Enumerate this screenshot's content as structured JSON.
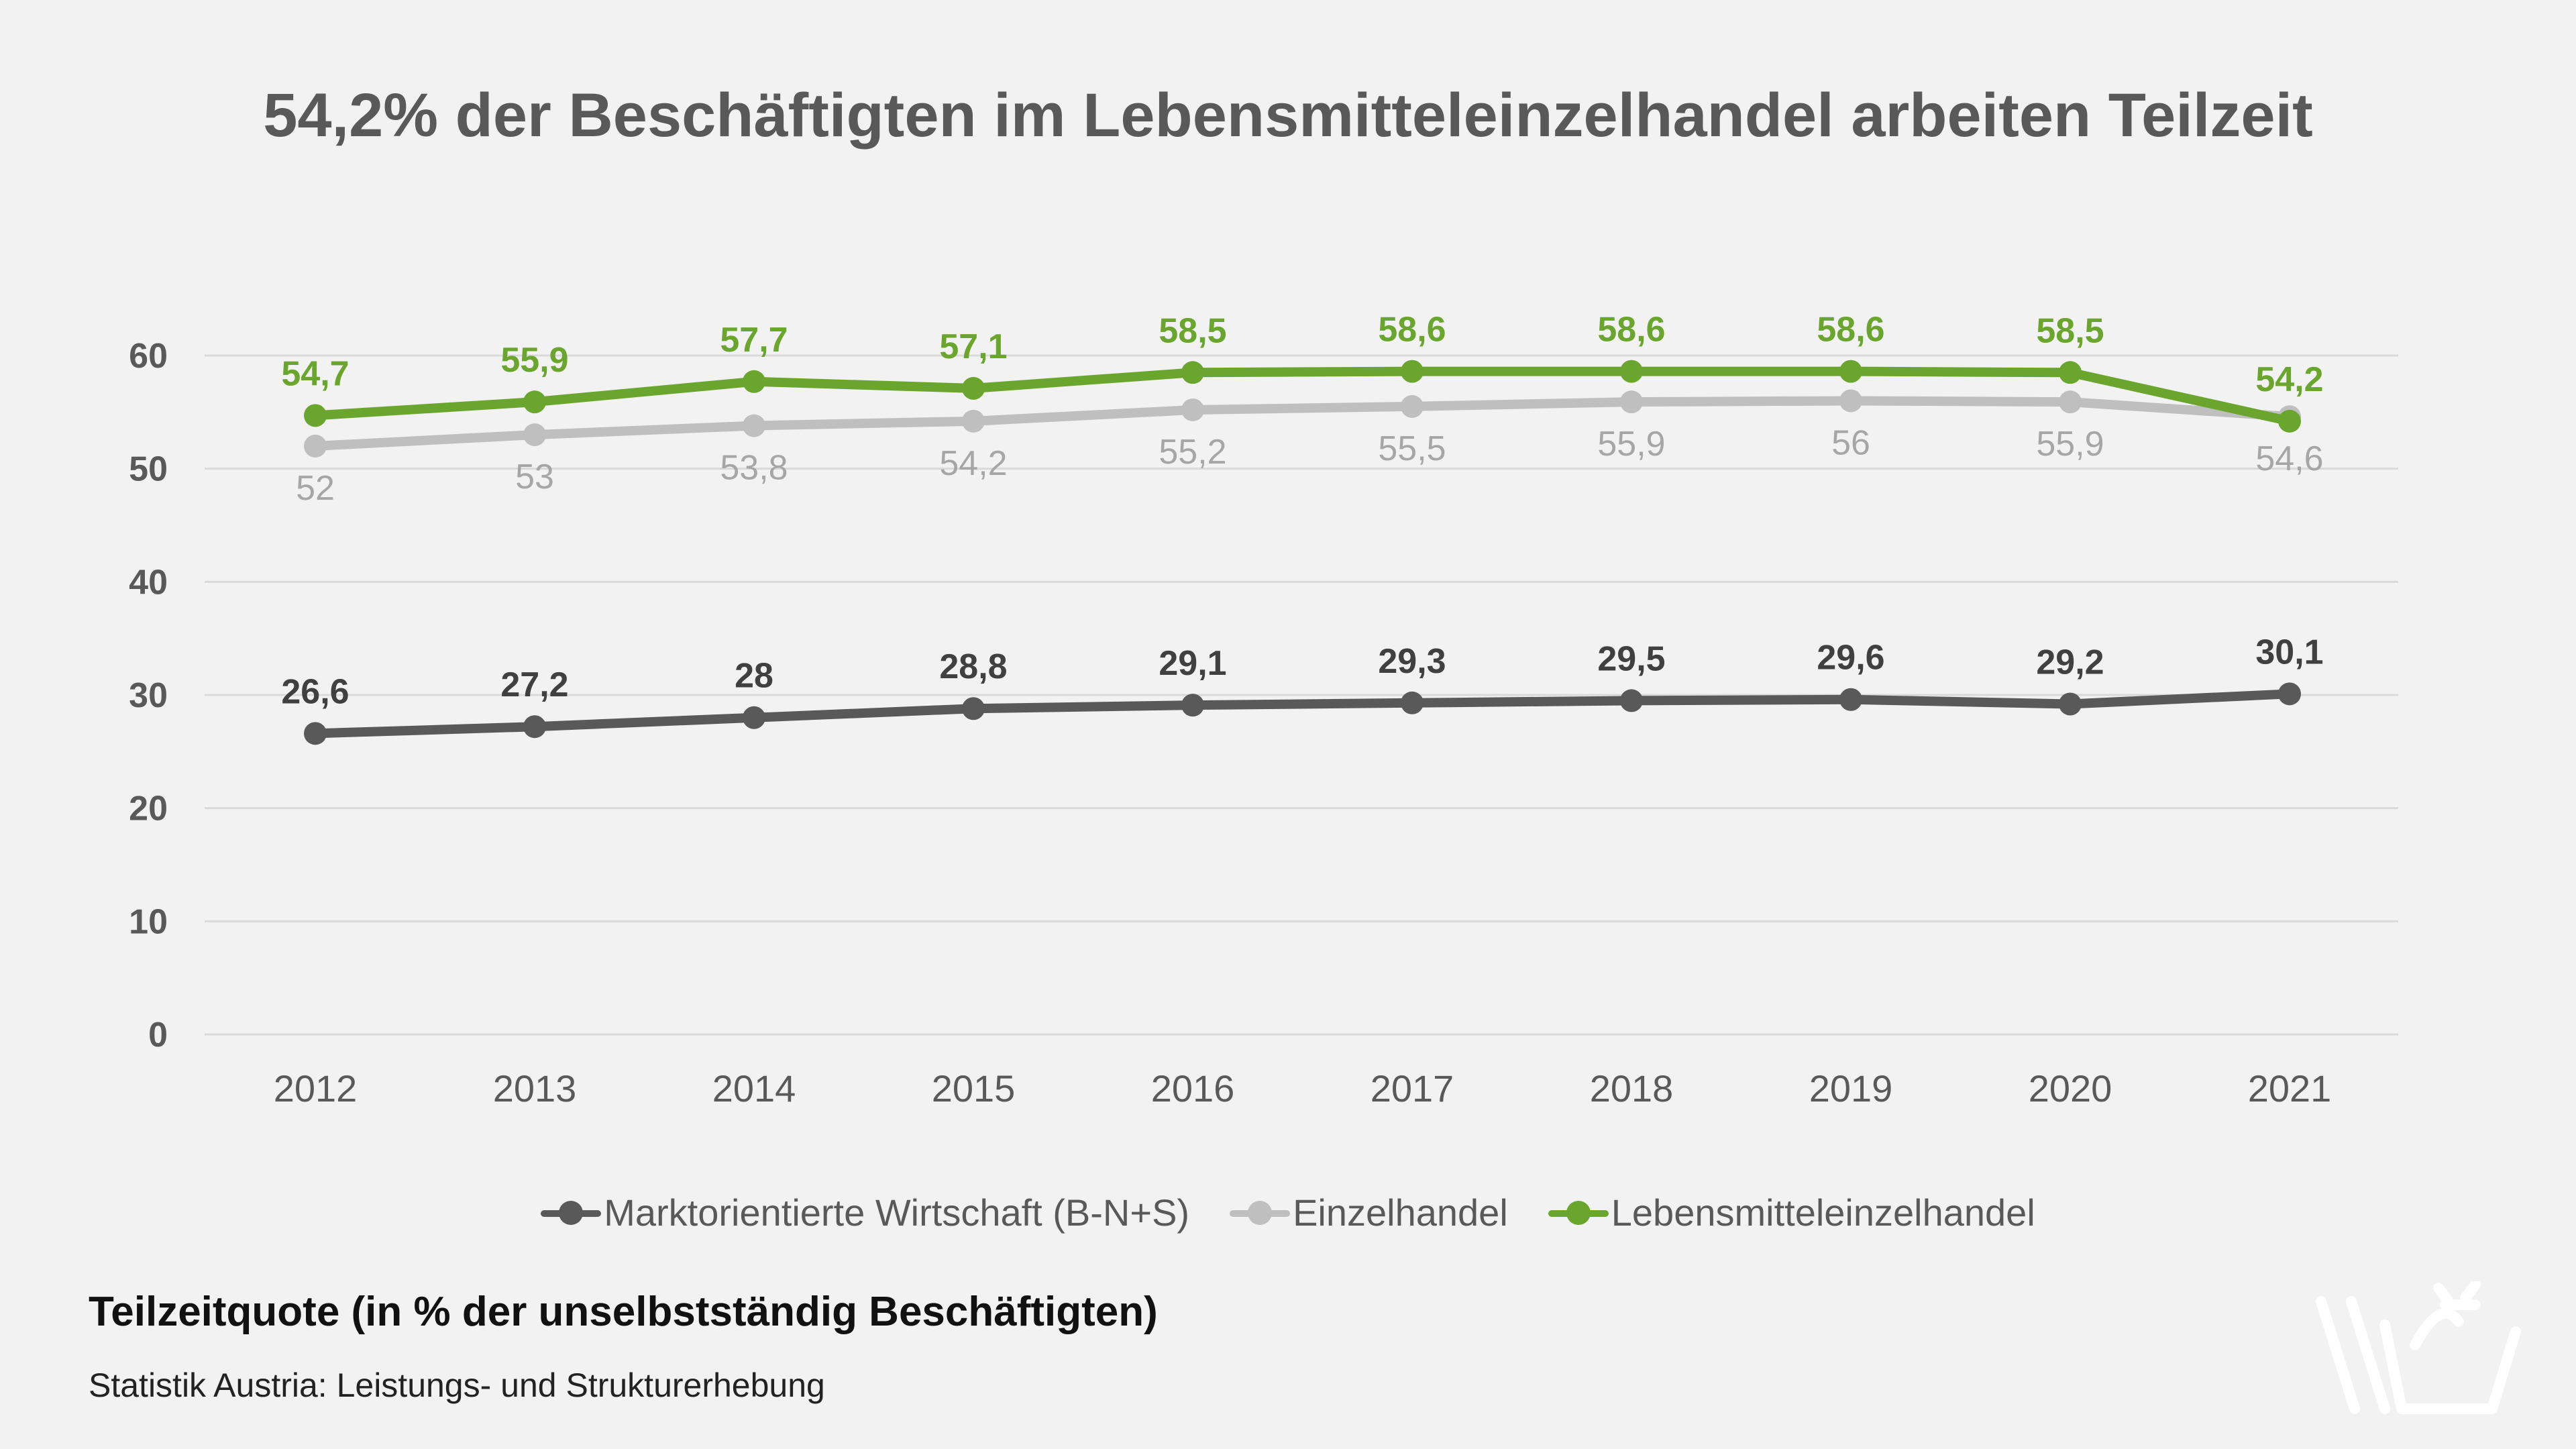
{
  "title": "54,2% der Beschäftigten im Lebensmitteleinzelhandel arbeiten Teilzeit",
  "subtitle": "Teilzeitquote (in % der unselbstständig Beschäftigten)",
  "source": "Statistik Austria: Leistungs- und Strukturerhebung",
  "chart_data": {
    "type": "line",
    "title": "54,2% der Beschäftigten im Lebensmitteleinzelhandel arbeiten Teilzeit",
    "xlabel": "",
    "ylabel": "",
    "categories": [
      "2012",
      "2013",
      "2014",
      "2015",
      "2016",
      "2017",
      "2018",
      "2019",
      "2020",
      "2021"
    ],
    "yticks": [
      "0",
      "10",
      "20",
      "30",
      "40",
      "50",
      "60"
    ],
    "ylim": [
      0,
      60
    ],
    "grid": true,
    "legend_position": "bottom",
    "series": [
      {
        "name": "Marktorientierte Wirtschaft (B-N+S)",
        "color": "#595959",
        "label_color": "#404040",
        "label_position": "above",
        "values": [
          26.6,
          27.2,
          28,
          28.8,
          29.1,
          29.3,
          29.5,
          29.6,
          29.2,
          30.1
        ],
        "labels": [
          "26,6",
          "27,2",
          "28",
          "28,8",
          "29,1",
          "29,3",
          "29,5",
          "29,6",
          "29,2",
          "30,1"
        ]
      },
      {
        "name": "Einzelhandel",
        "color": "#bfbfbf",
        "label_color": "#a6a6a6",
        "label_position": "below",
        "values": [
          52,
          53,
          53.8,
          54.2,
          55.2,
          55.5,
          55.9,
          56,
          55.9,
          54.6
        ],
        "labels": [
          "52",
          "53",
          "53,8",
          "54,2",
          "55,2",
          "55,5",
          "55,9",
          "56",
          "55,9",
          "54,6"
        ]
      },
      {
        "name": "Lebensmitteleinzelhandel",
        "color": "#6aa62e",
        "label_color": "#6aa62e",
        "label_position": "above",
        "values": [
          54.7,
          55.9,
          57.7,
          57.1,
          58.5,
          58.6,
          58.6,
          58.6,
          58.5,
          54.2
        ],
        "labels": [
          "54,7",
          "55,9",
          "57,7",
          "57,1",
          "58,5",
          "58,6",
          "58,6",
          "58,6",
          "58,5",
          "54,2"
        ]
      }
    ]
  },
  "logo": {
    "icon": "basket-logo-icon",
    "color": "#ffffff"
  }
}
